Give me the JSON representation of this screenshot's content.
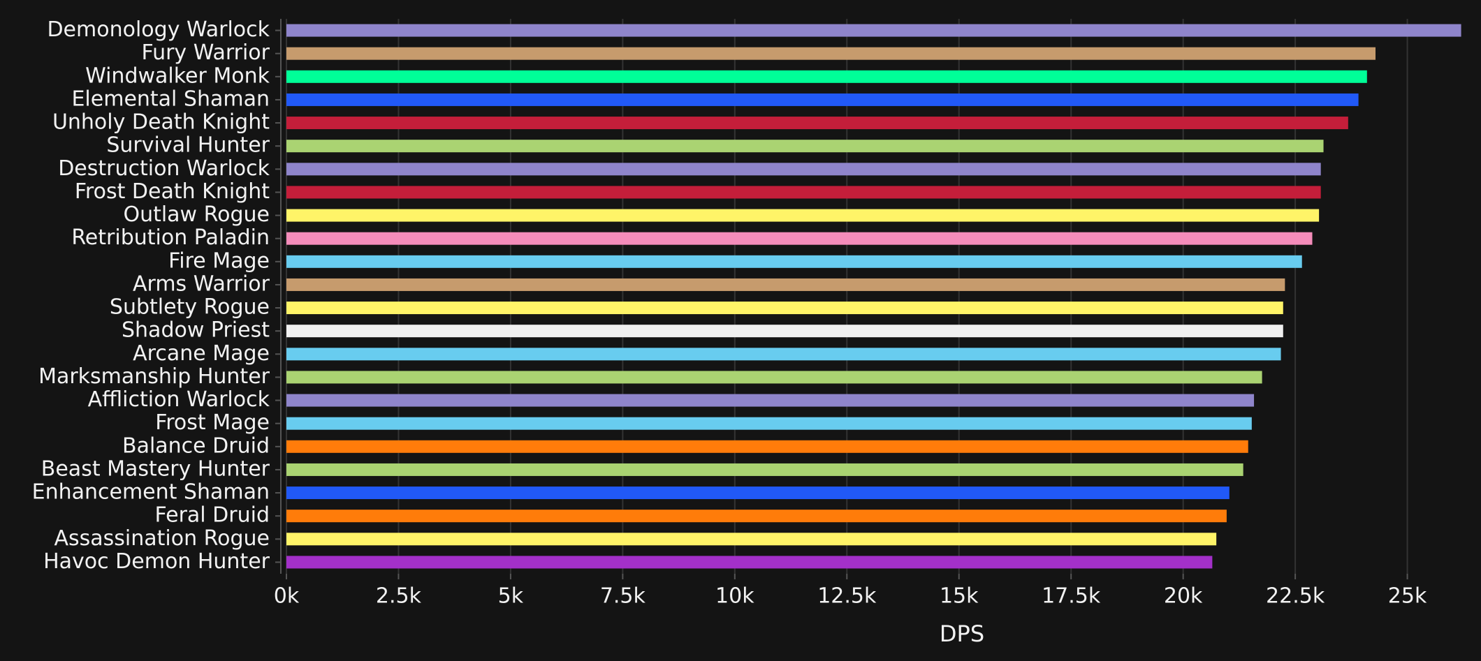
{
  "chart_data": {
    "type": "bar",
    "orientation": "horizontal",
    "x_label": "DPS",
    "categories": [
      "Demonology Warlock",
      "Fury Warrior",
      "Windwalker Monk",
      "Elemental Shaman",
      "Unholy Death Knight",
      "Survival Hunter",
      "Destruction Warlock",
      "Frost Death Knight",
      "Outlaw Rogue",
      "Retribution Paladin",
      "Fire Mage",
      "Arms Warrior",
      "Subtlety Rogue",
      "Shadow Priest",
      "Arcane Mage",
      "Marksmanship Hunter",
      "Affliction Warlock",
      "Frost Mage",
      "Balance Druid",
      "Beast Mastery Hunter",
      "Enhancement Shaman",
      "Feral Druid",
      "Assassination Rogue",
      "Havoc Demon Hunter"
    ],
    "values": [
      26200,
      24290,
      24100,
      23910,
      23680,
      23130,
      23070,
      23070,
      23030,
      22880,
      22650,
      22270,
      22230,
      22230,
      22180,
      21760,
      21580,
      21530,
      21450,
      21340,
      21030,
      20970,
      20740,
      20650
    ],
    "colors": [
      "#8f85cb",
      "#c69b6d",
      "#00ff98",
      "#2159f7",
      "#c41e3a",
      "#aad372",
      "#8f85cb",
      "#c41e3a",
      "#fff468",
      "#f48cba",
      "#68ccef",
      "#c69b6d",
      "#fff468",
      "#f0f0f0",
      "#68ccef",
      "#aad372",
      "#8f85cb",
      "#68ccef",
      "#ff7c0a",
      "#aad372",
      "#2159f7",
      "#ff7c0a",
      "#fff468",
      "#a330c9"
    ],
    "xlim": [
      0,
      26300
    ],
    "xticks": [
      {
        "value": 0,
        "label": "0k"
      },
      {
        "value": 2500,
        "label": "2.5k"
      },
      {
        "value": 5000,
        "label": "5k"
      },
      {
        "value": 7500,
        "label": "7.5k"
      },
      {
        "value": 10000,
        "label": "10k"
      },
      {
        "value": 12500,
        "label": "12.5k"
      },
      {
        "value": 15000,
        "label": "15k"
      },
      {
        "value": 17500,
        "label": "17.5k"
      },
      {
        "value": 20000,
        "label": "20k"
      },
      {
        "value": 22500,
        "label": "22.5k"
      },
      {
        "value": 25000,
        "label": "25k"
      }
    ],
    "grid": true
  }
}
